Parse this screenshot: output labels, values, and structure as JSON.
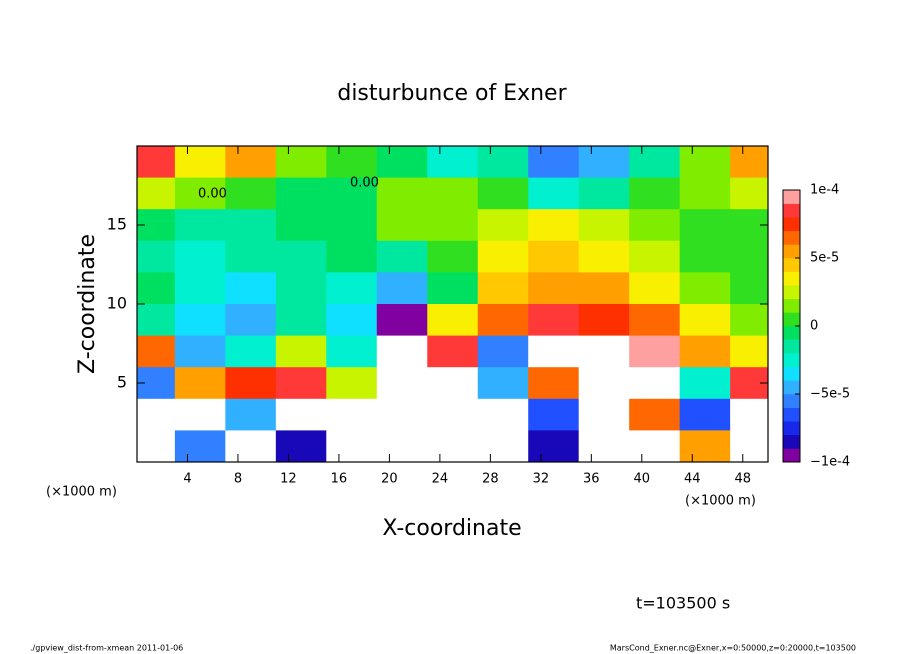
{
  "chart_data": {
    "type": "contour",
    "title": "disturbunce of Exner",
    "x_label": "X-coordinate",
    "y_label": "Z-coordinate",
    "x_unit": "(×1000 m)",
    "y_unit": "(×1000 m)",
    "time_label": "t=103500 s",
    "footer_left": "./gpview_dist-from-xmean  2011-01-06",
    "footer_right": "MarsCond_Exner.nc@Exner,x=0:50000,z=0:20000,t=103500",
    "contour_labels": [
      "0.00",
      "0.00"
    ],
    "xlim": [
      0,
      50
    ],
    "ylim": [
      0,
      20
    ],
    "xticks": [
      4,
      8,
      12,
      16,
      20,
      24,
      28,
      32,
      36,
      40,
      44,
      48
    ],
    "yticks": [
      5,
      10,
      15
    ],
    "x": [
      1,
      5,
      9,
      13,
      17,
      21,
      25,
      29,
      33,
      37,
      41,
      45,
      49
    ],
    "z": [
      19,
      17,
      15,
      13,
      11,
      9,
      7,
      5,
      3,
      1
    ],
    "values": [
      [
        8e-05,
        3e-05,
        5e-05,
        1e-05,
        0,
        -1e-05,
        -3e-05,
        -2e-05,
        -6e-05,
        -5e-05,
        -2e-05,
        1e-05,
        5e-05
      ],
      [
        2e-05,
        1e-05,
        0,
        -1e-05,
        -1e-05,
        1e-05,
        1e-05,
        0,
        -3e-05,
        -2e-05,
        0,
        1e-05,
        2e-05
      ],
      [
        -1e-05,
        -2e-05,
        -2e-05,
        -1e-05,
        -1e-05,
        1e-05,
        1e-05,
        2e-05,
        3e-05,
        2e-05,
        1e-05,
        0,
        0
      ],
      [
        -2e-05,
        -3e-05,
        -2e-05,
        -2e-05,
        -1e-05,
        -2e-05,
        0,
        3e-05,
        4e-05,
        3e-05,
        2e-05,
        0,
        0
      ],
      [
        -1e-05,
        -3e-05,
        -4e-05,
        -2e-05,
        -3e-05,
        -5e-05,
        -1e-05,
        4e-05,
        5e-05,
        5e-05,
        3e-05,
        1e-05,
        0
      ],
      [
        -2e-05,
        -4e-05,
        -5e-05,
        -2e-05,
        -4e-05,
        -9e-05,
        3e-05,
        6e-05,
        8e-05,
        7e-05,
        6e-05,
        3e-05,
        1e-05
      ],
      [
        6e-05,
        -5e-05,
        -3e-05,
        2e-05,
        -3e-05,
        0.0002,
        8e-05,
        -6e-05,
        0.0002,
        0.0002,
        9e-05,
        5e-05,
        3e-05
      ],
      [
        -6e-05,
        5e-05,
        7e-05,
        8e-05,
        2e-05,
        0.0002,
        0.0002,
        -5e-05,
        6e-05,
        0.0002,
        0.0002,
        -3e-05,
        8e-05
      ],
      [
        0.0002,
        0.0002,
        -5e-05,
        0.0002,
        0.0002,
        0.0002,
        0.0002,
        0.0002,
        -7e-05,
        0.0002,
        6e-05,
        -7e-05,
        0.0002
      ],
      [
        0.0002,
        -6e-05,
        0.0002,
        -8e-05,
        0.0002,
        0.0002,
        0.0002,
        0.0002,
        -8e-05,
        0.0002,
        0.0002,
        5e-05,
        0.0002
      ]
    ],
    "clim": [
      -0.0001,
      0.0001
    ],
    "cticks": [
      {
        "value": 0.0001,
        "label": "1e-4"
      },
      {
        "value": 5e-05,
        "label": "5e-5"
      },
      0,
      {
        "value": -5e-05,
        "label": "−5e-5"
      },
      {
        "value": -0.0001,
        "label": "−1e-4"
      }
    ],
    "colors": [
      "#8000a0",
      "#1808b8",
      "#1828e8",
      "#2050ff",
      "#3080ff",
      "#30b0ff",
      "#10e0ff",
      "#00f0d0",
      "#00e8a0",
      "#00e060",
      "#30e020",
      "#80ec00",
      "#c8f400",
      "#f8f000",
      "#ffc800",
      "#ffa000",
      "#ff6800",
      "#ff3000",
      "#ff3838",
      "#ffa0a0"
    ],
    "out_of_range_color": "#ffffff"
  }
}
